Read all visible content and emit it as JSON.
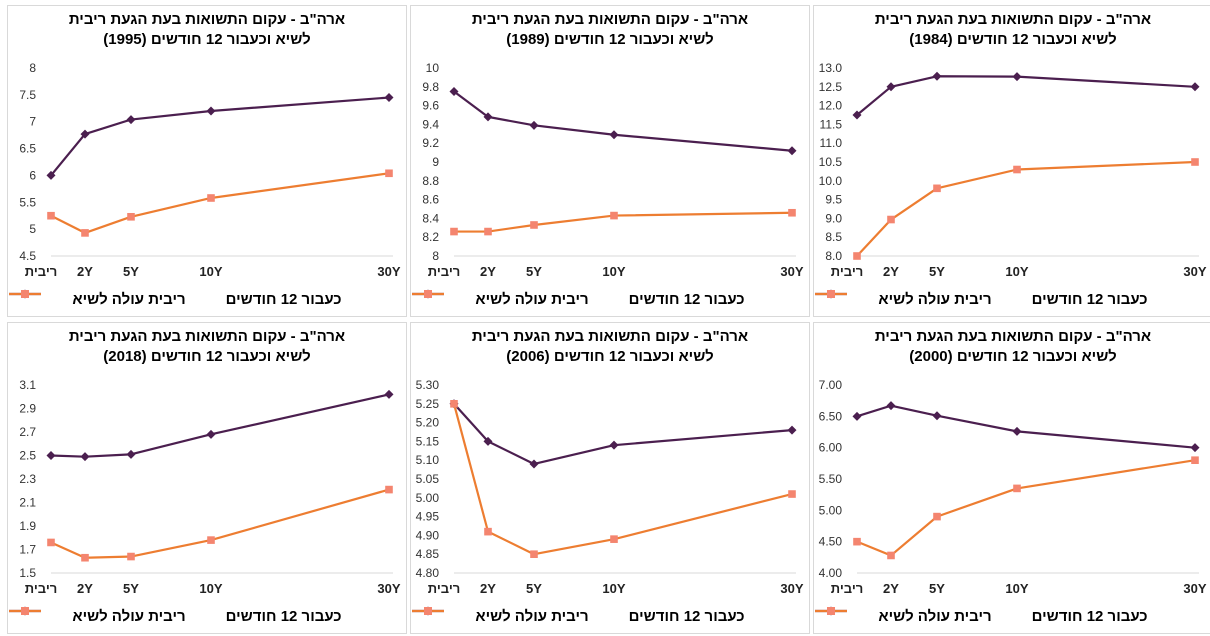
{
  "colors": {
    "series1": "#4b1f4f",
    "series2": "#ed7d31",
    "marker2": "#f4856f"
  },
  "legend": {
    "series1": "ריבית עולה לשיא",
    "series2": "כעבור 12 חודשים"
  },
  "chart_data": [
    {
      "type": "line",
      "title_line1": "ארה\"ב - עקום התשואות בעת הגעת ריבית",
      "title_line2": "לשיא וכעבור 12 חודשים (1995)",
      "x": [
        "ריבית",
        "2Y",
        "5Y",
        "10Y",
        "30Y"
      ],
      "ylim": [
        4.5,
        8
      ],
      "yticks": [
        "4.5",
        "5",
        "5.5",
        "6",
        "6.5",
        "7",
        "7.5",
        "8"
      ],
      "series": [
        {
          "name": "ריבית עולה לשיא",
          "values": [
            6.0,
            6.77,
            7.04,
            7.2,
            7.45
          ]
        },
        {
          "name": "כעבור 12 חודשים",
          "values": [
            5.25,
            4.93,
            5.23,
            5.58,
            6.04
          ]
        }
      ]
    },
    {
      "type": "line",
      "title_line1": "ארה\"ב - עקום התשואות בעת הגעת ריבית",
      "title_line2": "לשיא וכעבור 12 חודשים (1989)",
      "x": [
        "ריבית",
        "2Y",
        "5Y",
        "10Y",
        "30Y"
      ],
      "ylim": [
        8,
        10
      ],
      "yticks": [
        "8",
        "8.2",
        "8.4",
        "8.6",
        "8.8",
        "9",
        "9.2",
        "9.4",
        "9.6",
        "9.8",
        "10"
      ],
      "series": [
        {
          "name": "ריבית עולה לשיא",
          "values": [
            9.75,
            9.48,
            9.39,
            9.29,
            9.12
          ]
        },
        {
          "name": "כעבור 12 חודשים",
          "values": [
            8.26,
            8.26,
            8.33,
            8.43,
            8.46
          ]
        }
      ]
    },
    {
      "type": "line",
      "title_line1": "ארה\"ב - עקום התשואות בעת הגעת ריבית",
      "title_line2": "לשיא וכעבור 12 חודשים (1984)",
      "x": [
        "ריבית",
        "2Y",
        "5Y",
        "10Y",
        "30Y"
      ],
      "ylim": [
        8,
        13
      ],
      "yticks": [
        "8.0",
        "8.5",
        "9.0",
        "9.5",
        "10.0",
        "10.5",
        "11.0",
        "11.5",
        "12.0",
        "12.5",
        "13.0"
      ],
      "series": [
        {
          "name": "ריבית עולה לשיא",
          "values": [
            11.75,
            12.5,
            12.78,
            12.77,
            12.5
          ]
        },
        {
          "name": "כעבור 12 חודשים",
          "values": [
            8.0,
            8.97,
            9.8,
            10.3,
            10.5
          ]
        }
      ]
    },
    {
      "type": "line",
      "title_line1": "ארה\"ב - עקום התשואות בעת הגעת ריבית",
      "title_line2": "לשיא וכעבור 12 חודשים (2018)",
      "x": [
        "ריבית",
        "2Y",
        "5Y",
        "10Y",
        "30Y"
      ],
      "ylim": [
        1.5,
        3.1
      ],
      "yticks": [
        "1.5",
        "1.7",
        "1.9",
        "2.1",
        "2.3",
        "2.5",
        "2.7",
        "2.9",
        "3.1"
      ],
      "series": [
        {
          "name": "ריבית עולה לשיא",
          "values": [
            2.5,
            2.49,
            2.51,
            2.68,
            3.02
          ]
        },
        {
          "name": "כעבור 12 חודשים",
          "values": [
            1.76,
            1.63,
            1.64,
            1.78,
            2.21
          ]
        }
      ]
    },
    {
      "type": "line",
      "title_line1": "ארה\"ב - עקום התשואות בעת הגעת ריבית",
      "title_line2": "לשיא וכעבור 12 חודשים (2006)",
      "x": [
        "ריבית",
        "2Y",
        "5Y",
        "10Y",
        "30Y"
      ],
      "ylim": [
        4.8,
        5.3
      ],
      "yticks": [
        "4.80",
        "4.85",
        "4.90",
        "4.95",
        "5.00",
        "5.05",
        "5.10",
        "5.15",
        "5.20",
        "5.25",
        "5.30"
      ],
      "series": [
        {
          "name": "ריבית עולה לשיא",
          "values": [
            5.25,
            5.15,
            5.09,
            5.14,
            5.18
          ]
        },
        {
          "name": "כעבור 12 חודשים",
          "values": [
            5.25,
            4.91,
            4.85,
            4.89,
            5.01
          ]
        }
      ]
    },
    {
      "type": "line",
      "title_line1": "ארה\"ב - עקום התשואות בעת הגעת ריבית",
      "title_line2": "לשיא וכעבור 12 חודשים (2000)",
      "x": [
        "ריבית",
        "2Y",
        "5Y",
        "10Y",
        "30Y"
      ],
      "ylim": [
        4,
        7
      ],
      "yticks": [
        "4.00",
        "4.50",
        "5.00",
        "5.50",
        "6.00",
        "6.50",
        "7.00"
      ],
      "series": [
        {
          "name": "ריבית עולה לשיא",
          "values": [
            6.5,
            6.67,
            6.51,
            6.26,
            6.0
          ]
        },
        {
          "name": "כעבור 12 חודשים",
          "values": [
            4.5,
            4.28,
            4.9,
            5.35,
            5.8
          ]
        }
      ]
    }
  ]
}
